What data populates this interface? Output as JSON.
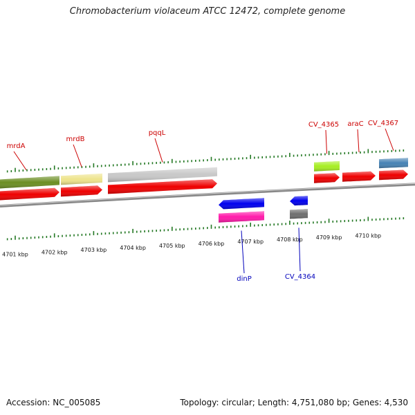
{
  "title": "Chromobacterium violaceum ATCC 12472, complete genome",
  "footer": {
    "accession": "Accession: NC_005085",
    "summary": "Topology: circular; Length: 4,751,080 bp; Genes: 4,530"
  },
  "colors": {
    "forward_label": "#cc0000",
    "reverse_label": "#0000bb",
    "tick": "#227722",
    "backbone": "#888888"
  },
  "ticks": [
    {
      "label": "4701 kbp"
    },
    {
      "label": "4702 kbp"
    },
    {
      "label": "4703 kbp"
    },
    {
      "label": "4704 kbp"
    },
    {
      "label": "4705 kbp"
    },
    {
      "label": "4706 kbp"
    },
    {
      "label": "4707 kbp"
    },
    {
      "label": "4708 kbp"
    },
    {
      "label": "4709 kbp"
    },
    {
      "label": "4710 kbp"
    }
  ],
  "genes": [
    {
      "name": "mrdA",
      "strand": "forward",
      "cat_color": "#6b8e23"
    },
    {
      "name": "mrdB",
      "strand": "forward",
      "cat_color": "#eee48c"
    },
    {
      "name": "pqqL",
      "strand": "forward",
      "cat_color": "#c8c8c8"
    },
    {
      "name": "dinP",
      "strand": "reverse",
      "cat_color": "#ff1aaa"
    },
    {
      "name": "CV_4364",
      "strand": "reverse",
      "cat_color": "#6e6e6e"
    },
    {
      "name": "CV_4365",
      "strand": "forward",
      "cat_color": "#a6ee22"
    },
    {
      "name": "araC",
      "strand": "forward",
      "cat_color": ""
    },
    {
      "name": "CV_4367",
      "strand": "forward",
      "cat_color": "#4682b4"
    }
  ]
}
